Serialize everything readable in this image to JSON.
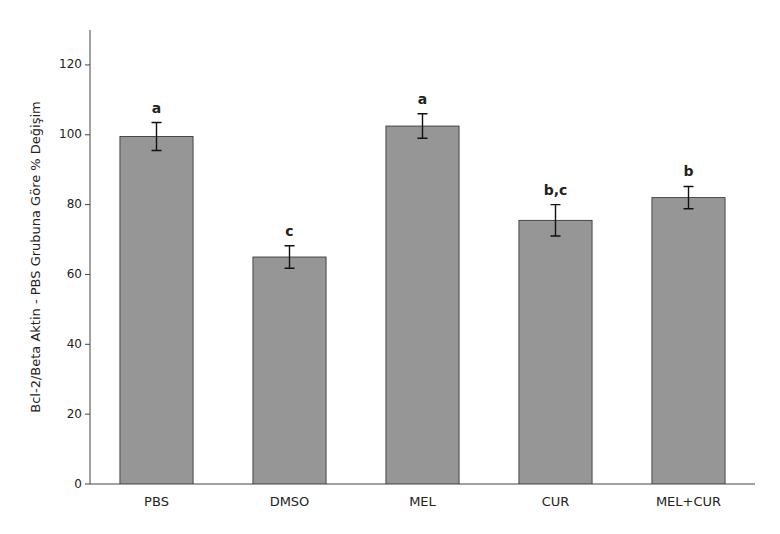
{
  "chart_data": {
    "type": "bar",
    "categories": [
      "PBS",
      "DMSO",
      "MEL",
      "CUR",
      "MEL+CUR"
    ],
    "values": [
      99.5,
      65.0,
      102.5,
      75.5,
      82.0
    ],
    "errors": [
      4.0,
      3.2,
      3.5,
      4.5,
      3.2
    ],
    "annotations": [
      "a",
      "c",
      "a",
      "b,c",
      "b"
    ],
    "ylabel": "Bcl-2/Beta Aktin - PBS Grubuna Göre % Değişim",
    "color": "#969696",
    "ylim": [
      0,
      130
    ],
    "yticks": [
      0,
      20,
      40,
      60,
      80,
      100,
      120
    ],
    "grid": false
  }
}
